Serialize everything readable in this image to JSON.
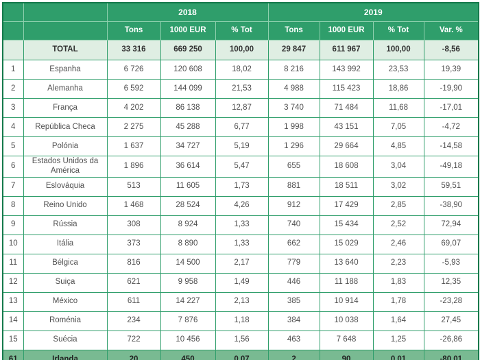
{
  "colors": {
    "header_green": "#2f9e6b",
    "header_divider": "#8fd0ae",
    "body_border": "#2f9e6b",
    "outer_border": "#15794b",
    "total_row_bg": "#dfeee3",
    "highlight_row_bg": "#79ba92",
    "header_text": "#ffffff",
    "body_text": "#4f4f4f"
  },
  "chart_data": {
    "type": "table",
    "column_groups": [
      "2018",
      "2019"
    ],
    "sub_headers": [
      "Tons",
      "1000 EUR",
      "% Tot",
      "Tons",
      "1000 EUR",
      "% Tot",
      "Var. %"
    ],
    "rows": [
      {
        "style": "total",
        "rank": "",
        "country": "TOTAL",
        "values": [
          "33 316",
          "669 250",
          "100,00",
          "29 847",
          "611 967",
          "100,00",
          "-8,56"
        ]
      },
      {
        "style": "normal",
        "rank": "1",
        "country": "Espanha",
        "values": [
          "6 726",
          "120 608",
          "18,02",
          "8 216",
          "143 992",
          "23,53",
          "19,39"
        ]
      },
      {
        "style": "normal",
        "rank": "2",
        "country": "Alemanha",
        "values": [
          "6 592",
          "144 099",
          "21,53",
          "4 988",
          "115 423",
          "18,86",
          "-19,90"
        ]
      },
      {
        "style": "normal",
        "rank": "3",
        "country": "França",
        "values": [
          "4 202",
          "86 138",
          "12,87",
          "3 740",
          "71 484",
          "11,68",
          "-17,01"
        ]
      },
      {
        "style": "normal",
        "rank": "4",
        "country": "República Checa",
        "values": [
          "2 275",
          "45 288",
          "6,77",
          "1 998",
          "43 151",
          "7,05",
          "-4,72"
        ]
      },
      {
        "style": "normal",
        "rank": "5",
        "country": "Polónia",
        "values": [
          "1 637",
          "34 727",
          "5,19",
          "1 296",
          "29 664",
          "4,85",
          "-14,58"
        ]
      },
      {
        "style": "normal",
        "rank": "6",
        "country": "Estados Unidos da América",
        "values": [
          "1 896",
          "36 614",
          "5,47",
          "655",
          "18 608",
          "3,04",
          "-49,18"
        ]
      },
      {
        "style": "normal",
        "rank": "7",
        "country": "Eslováquia",
        "values": [
          "513",
          "11 605",
          "1,73",
          "881",
          "18 511",
          "3,02",
          "59,51"
        ]
      },
      {
        "style": "normal",
        "rank": "8",
        "country": "Reino Unido",
        "values": [
          "1 468",
          "28 524",
          "4,26",
          "912",
          "17 429",
          "2,85",
          "-38,90"
        ]
      },
      {
        "style": "normal",
        "rank": "9",
        "country": "Rússia",
        "values": [
          "308",
          "8 924",
          "1,33",
          "740",
          "15 434",
          "2,52",
          "72,94"
        ]
      },
      {
        "style": "normal",
        "rank": "10",
        "country": "Itália",
        "values": [
          "373",
          "8 890",
          "1,33",
          "662",
          "15 029",
          "2,46",
          "69,07"
        ]
      },
      {
        "style": "normal",
        "rank": "11",
        "country": "Bélgica",
        "values": [
          "816",
          "14 500",
          "2,17",
          "779",
          "13 640",
          "2,23",
          "-5,93"
        ]
      },
      {
        "style": "normal",
        "rank": "12",
        "country": "Suiça",
        "values": [
          "621",
          "9 958",
          "1,49",
          "446",
          "11 188",
          "1,83",
          "12,35"
        ]
      },
      {
        "style": "normal",
        "rank": "13",
        "country": "México",
        "values": [
          "611",
          "14 227",
          "2,13",
          "385",
          "10 914",
          "1,78",
          "-23,28"
        ]
      },
      {
        "style": "normal",
        "rank": "14",
        "country": "Roménia",
        "values": [
          "234",
          "7 876",
          "1,18",
          "384",
          "10 038",
          "1,64",
          "27,45"
        ]
      },
      {
        "style": "normal",
        "rank": "15",
        "country": "Suécia",
        "values": [
          "722",
          "10 456",
          "1,56",
          "463",
          "7 648",
          "1,25",
          "-26,86"
        ]
      },
      {
        "style": "highlight",
        "rank": "61",
        "country": "Irlanda",
        "values": [
          "20",
          "450",
          "0,07",
          "2",
          "90",
          "0,01",
          "-80,01"
        ]
      }
    ]
  }
}
